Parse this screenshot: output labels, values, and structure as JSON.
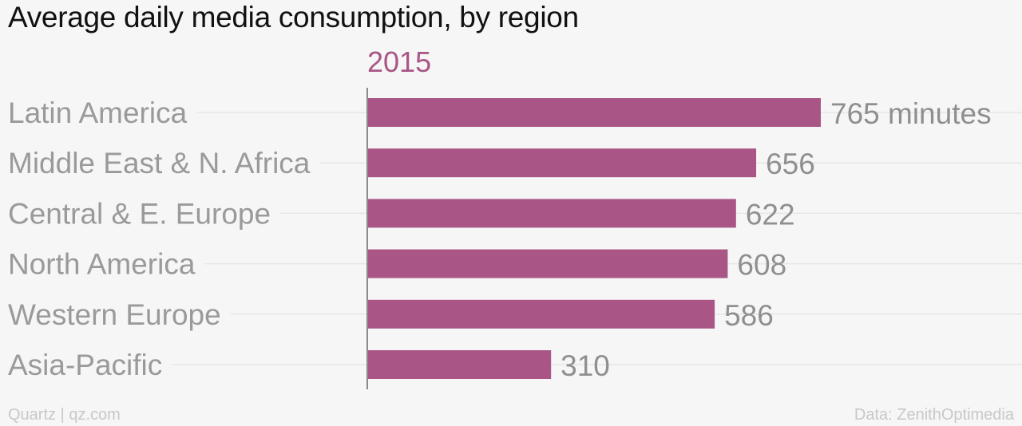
{
  "title": "Average daily media consumption, by region",
  "footer": {
    "credit": "Quartz | qz.com",
    "source": "Data: ZenithOptimedia"
  },
  "colors": {
    "bar": "#a95686",
    "series_label": "#a95686",
    "gridline": "#e6e6e6",
    "axis": "#8a8a8a"
  },
  "chart_data": {
    "type": "bar",
    "orientation": "horizontal",
    "series": [
      {
        "name": "2015",
        "values": [
          765,
          656,
          622,
          608,
          586,
          310
        ]
      }
    ],
    "categories": [
      "Latin America",
      "Middle East & N. Africa",
      "Central & E. Europe",
      "North America",
      "Western Europe",
      "Asia-Pacific"
    ],
    "value_labels": [
      "765 minutes",
      "656",
      "622",
      "608",
      "586",
      "310"
    ],
    "xlim": [
      0,
      765
    ],
    "grid": true,
    "legend": "top"
  }
}
